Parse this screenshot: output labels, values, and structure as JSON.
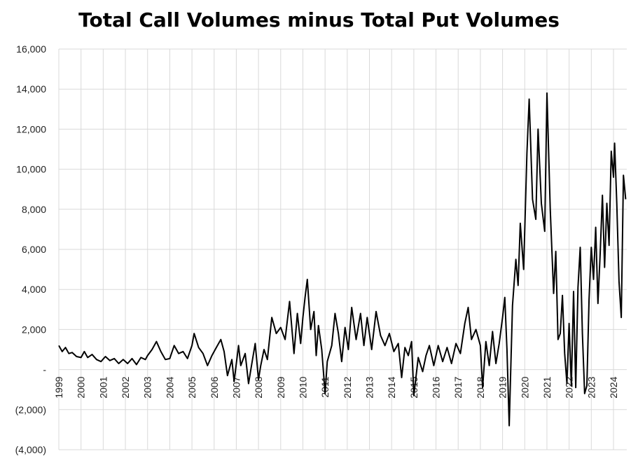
{
  "chart_data": {
    "type": "line",
    "title": "Total Call Volumes minus Total Put Volumes",
    "xlabel": "",
    "ylabel": "",
    "xlim": [
      1999,
      2024.6
    ],
    "ylim": [
      -4000,
      16000
    ],
    "grid": true,
    "legend": "none",
    "line_color": "#000000",
    "y_ticks": [
      {
        "value": 16000,
        "label": "16,000"
      },
      {
        "value": 14000,
        "label": "14,000"
      },
      {
        "value": 12000,
        "label": "12,000"
      },
      {
        "value": 10000,
        "label": "10,000"
      },
      {
        "value": 8000,
        "label": "8,000"
      },
      {
        "value": 6000,
        "label": "6,000"
      },
      {
        "value": 4000,
        "label": "4,000"
      },
      {
        "value": 2000,
        "label": "2,000"
      },
      {
        "value": 0,
        "label": "-"
      },
      {
        "value": -2000,
        "label": "(2,000)"
      },
      {
        "value": -4000,
        "label": "(4,000)"
      }
    ],
    "x_ticks": [
      {
        "value": 1999,
        "label": "1999"
      },
      {
        "value": 2000,
        "label": "2000"
      },
      {
        "value": 2001,
        "label": "2001"
      },
      {
        "value": 2002,
        "label": "2002"
      },
      {
        "value": 2003,
        "label": "2003"
      },
      {
        "value": 2004,
        "label": "2004"
      },
      {
        "value": 2005,
        "label": "2005"
      },
      {
        "value": 2006,
        "label": "2006"
      },
      {
        "value": 2007,
        "label": "2007"
      },
      {
        "value": 2008,
        "label": "2008"
      },
      {
        "value": 2009,
        "label": "2009"
      },
      {
        "value": 2010,
        "label": "2010"
      },
      {
        "value": 2011,
        "label": "2011"
      },
      {
        "value": 2012,
        "label": "2012"
      },
      {
        "value": 2013,
        "label": "2013"
      },
      {
        "value": 2014,
        "label": "2014"
      },
      {
        "value": 2015,
        "label": "2015"
      },
      {
        "value": 2016,
        "label": "2016"
      },
      {
        "value": 2017,
        "label": "2017"
      },
      {
        "value": 2018,
        "label": "2018"
      },
      {
        "value": 2019,
        "label": "2019"
      },
      {
        "value": 2020,
        "label": "2020"
      },
      {
        "value": 2021,
        "label": "2021"
      },
      {
        "value": 2022,
        "label": "2022"
      },
      {
        "value": 2023,
        "label": "2023"
      },
      {
        "value": 2024,
        "label": "2024"
      }
    ],
    "series": [
      {
        "values": [
          [
            1999.0,
            1200
          ],
          [
            1999.15,
            900
          ],
          [
            1999.3,
            1100
          ],
          [
            1999.45,
            800
          ],
          [
            1999.6,
            850
          ],
          [
            1999.8,
            650
          ],
          [
            2000.0,
            600
          ],
          [
            2000.15,
            900
          ],
          [
            2000.3,
            600
          ],
          [
            2000.5,
            750
          ],
          [
            2000.7,
            500
          ],
          [
            2000.9,
            400
          ],
          [
            2001.1,
            650
          ],
          [
            2001.3,
            450
          ],
          [
            2001.5,
            550
          ],
          [
            2001.7,
            300
          ],
          [
            2001.9,
            500
          ],
          [
            2002.1,
            300
          ],
          [
            2002.3,
            550
          ],
          [
            2002.5,
            250
          ],
          [
            2002.7,
            600
          ],
          [
            2002.9,
            500
          ],
          [
            2003.0,
            700
          ],
          [
            2003.2,
            1000
          ],
          [
            2003.4,
            1400
          ],
          [
            2003.6,
            900
          ],
          [
            2003.8,
            500
          ],
          [
            2004.0,
            550
          ],
          [
            2004.2,
            1200
          ],
          [
            2004.4,
            800
          ],
          [
            2004.6,
            900
          ],
          [
            2004.8,
            550
          ],
          [
            2005.0,
            1200
          ],
          [
            2005.1,
            1800
          ],
          [
            2005.3,
            1100
          ],
          [
            2005.5,
            800
          ],
          [
            2005.7,
            200
          ],
          [
            2005.9,
            700
          ],
          [
            2006.1,
            1100
          ],
          [
            2006.3,
            1500
          ],
          [
            2006.45,
            900
          ],
          [
            2006.6,
            -300
          ],
          [
            2006.8,
            500
          ],
          [
            2006.9,
            -600
          ],
          [
            2007.1,
            1200
          ],
          [
            2007.2,
            200
          ],
          [
            2007.4,
            800
          ],
          [
            2007.55,
            -700
          ],
          [
            2007.7,
            300
          ],
          [
            2007.85,
            1300
          ],
          [
            2008.0,
            -500
          ],
          [
            2008.1,
            200
          ],
          [
            2008.25,
            1000
          ],
          [
            2008.4,
            500
          ],
          [
            2008.6,
            2600
          ],
          [
            2008.8,
            1800
          ],
          [
            2009.0,
            2100
          ],
          [
            2009.2,
            1500
          ],
          [
            2009.4,
            3400
          ],
          [
            2009.6,
            800
          ],
          [
            2009.75,
            2800
          ],
          [
            2009.9,
            1300
          ],
          [
            2010.0,
            2600
          ],
          [
            2010.1,
            3600
          ],
          [
            2010.2,
            4500
          ],
          [
            2010.35,
            2000
          ],
          [
            2010.5,
            2900
          ],
          [
            2010.6,
            700
          ],
          [
            2010.7,
            2200
          ],
          [
            2010.85,
            1000
          ],
          [
            2011.0,
            -1200
          ],
          [
            2011.1,
            400
          ],
          [
            2011.3,
            1200
          ],
          [
            2011.45,
            2800
          ],
          [
            2011.6,
            1800
          ],
          [
            2011.75,
            400
          ],
          [
            2011.9,
            2100
          ],
          [
            2012.05,
            1000
          ],
          [
            2012.2,
            3100
          ],
          [
            2012.4,
            1500
          ],
          [
            2012.6,
            2800
          ],
          [
            2012.75,
            1200
          ],
          [
            2012.9,
            2600
          ],
          [
            2013.1,
            1000
          ],
          [
            2013.3,
            2900
          ],
          [
            2013.5,
            1700
          ],
          [
            2013.7,
            1200
          ],
          [
            2013.9,
            1800
          ],
          [
            2014.1,
            900
          ],
          [
            2014.3,
            1300
          ],
          [
            2014.45,
            -400
          ],
          [
            2014.6,
            1100
          ],
          [
            2014.75,
            700
          ],
          [
            2014.9,
            1400
          ],
          [
            2015.0,
            -1300
          ],
          [
            2015.2,
            600
          ],
          [
            2015.4,
            -100
          ],
          [
            2015.55,
            700
          ],
          [
            2015.7,
            1200
          ],
          [
            2015.9,
            200
          ],
          [
            2016.1,
            1200
          ],
          [
            2016.3,
            400
          ],
          [
            2016.5,
            1100
          ],
          [
            2016.7,
            300
          ],
          [
            2016.9,
            1300
          ],
          [
            2017.1,
            800
          ],
          [
            2017.3,
            2300
          ],
          [
            2017.45,
            3100
          ],
          [
            2017.6,
            1500
          ],
          [
            2017.8,
            2000
          ],
          [
            2018.0,
            1200
          ],
          [
            2018.1,
            -900
          ],
          [
            2018.25,
            1400
          ],
          [
            2018.4,
            200
          ],
          [
            2018.55,
            1900
          ],
          [
            2018.7,
            300
          ],
          [
            2018.85,
            1300
          ],
          [
            2019.0,
            2600
          ],
          [
            2019.1,
            3600
          ],
          [
            2019.2,
            1000
          ],
          [
            2019.3,
            -2800
          ],
          [
            2019.45,
            3200
          ],
          [
            2019.6,
            5500
          ],
          [
            2019.7,
            4200
          ],
          [
            2019.8,
            7300
          ],
          [
            2019.95,
            5000
          ],
          [
            2020.1,
            10800
          ],
          [
            2020.2,
            13500
          ],
          [
            2020.35,
            8500
          ],
          [
            2020.5,
            7500
          ],
          [
            2020.6,
            12000
          ],
          [
            2020.75,
            8300
          ],
          [
            2020.9,
            6900
          ],
          [
            2021.0,
            13800
          ],
          [
            2021.15,
            8000
          ],
          [
            2021.3,
            3800
          ],
          [
            2021.4,
            5900
          ],
          [
            2021.5,
            1500
          ],
          [
            2021.6,
            1800
          ],
          [
            2021.7,
            3700
          ],
          [
            2021.8,
            800
          ],
          [
            2021.9,
            -700
          ],
          [
            2022.0,
            2300
          ],
          [
            2022.1,
            -800
          ],
          [
            2022.2,
            3900
          ],
          [
            2022.3,
            -900
          ],
          [
            2022.4,
            4100
          ],
          [
            2022.5,
            6100
          ],
          [
            2022.6,
            1800
          ],
          [
            2022.7,
            -1200
          ],
          [
            2022.8,
            -800
          ],
          [
            2022.9,
            3500
          ],
          [
            2023.0,
            6100
          ],
          [
            2023.1,
            4500
          ],
          [
            2023.2,
            7100
          ],
          [
            2023.3,
            3300
          ],
          [
            2023.4,
            5800
          ],
          [
            2023.5,
            8700
          ],
          [
            2023.6,
            5100
          ],
          [
            2023.7,
            8300
          ],
          [
            2023.8,
            6200
          ],
          [
            2023.9,
            10900
          ],
          [
            2024.0,
            9600
          ],
          [
            2024.05,
            11300
          ],
          [
            2024.15,
            8300
          ],
          [
            2024.25,
            4400
          ],
          [
            2024.35,
            2600
          ],
          [
            2024.45,
            9700
          ],
          [
            2024.55,
            8500
          ]
        ]
      }
    ]
  }
}
